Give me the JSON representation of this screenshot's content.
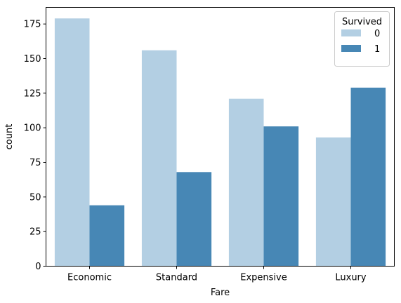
{
  "chart_data": {
    "type": "bar",
    "xlabel": "Fare",
    "ylabel": "count",
    "categories": [
      "Economic",
      "Standard",
      "Expensive",
      "Luxury"
    ],
    "ylim": [
      0,
      187
    ],
    "yticks": [
      0,
      25,
      50,
      75,
      100,
      125,
      150,
      175
    ],
    "grid": false,
    "legend": {
      "title": "Survived",
      "placement": "top-right"
    },
    "series": [
      {
        "name": "0",
        "color": "#b3cfe3",
        "values": [
          179,
          156,
          121,
          93
        ]
      },
      {
        "name": "1",
        "color": "#4787b5",
        "values": [
          44,
          68,
          101,
          129
        ]
      }
    ]
  }
}
